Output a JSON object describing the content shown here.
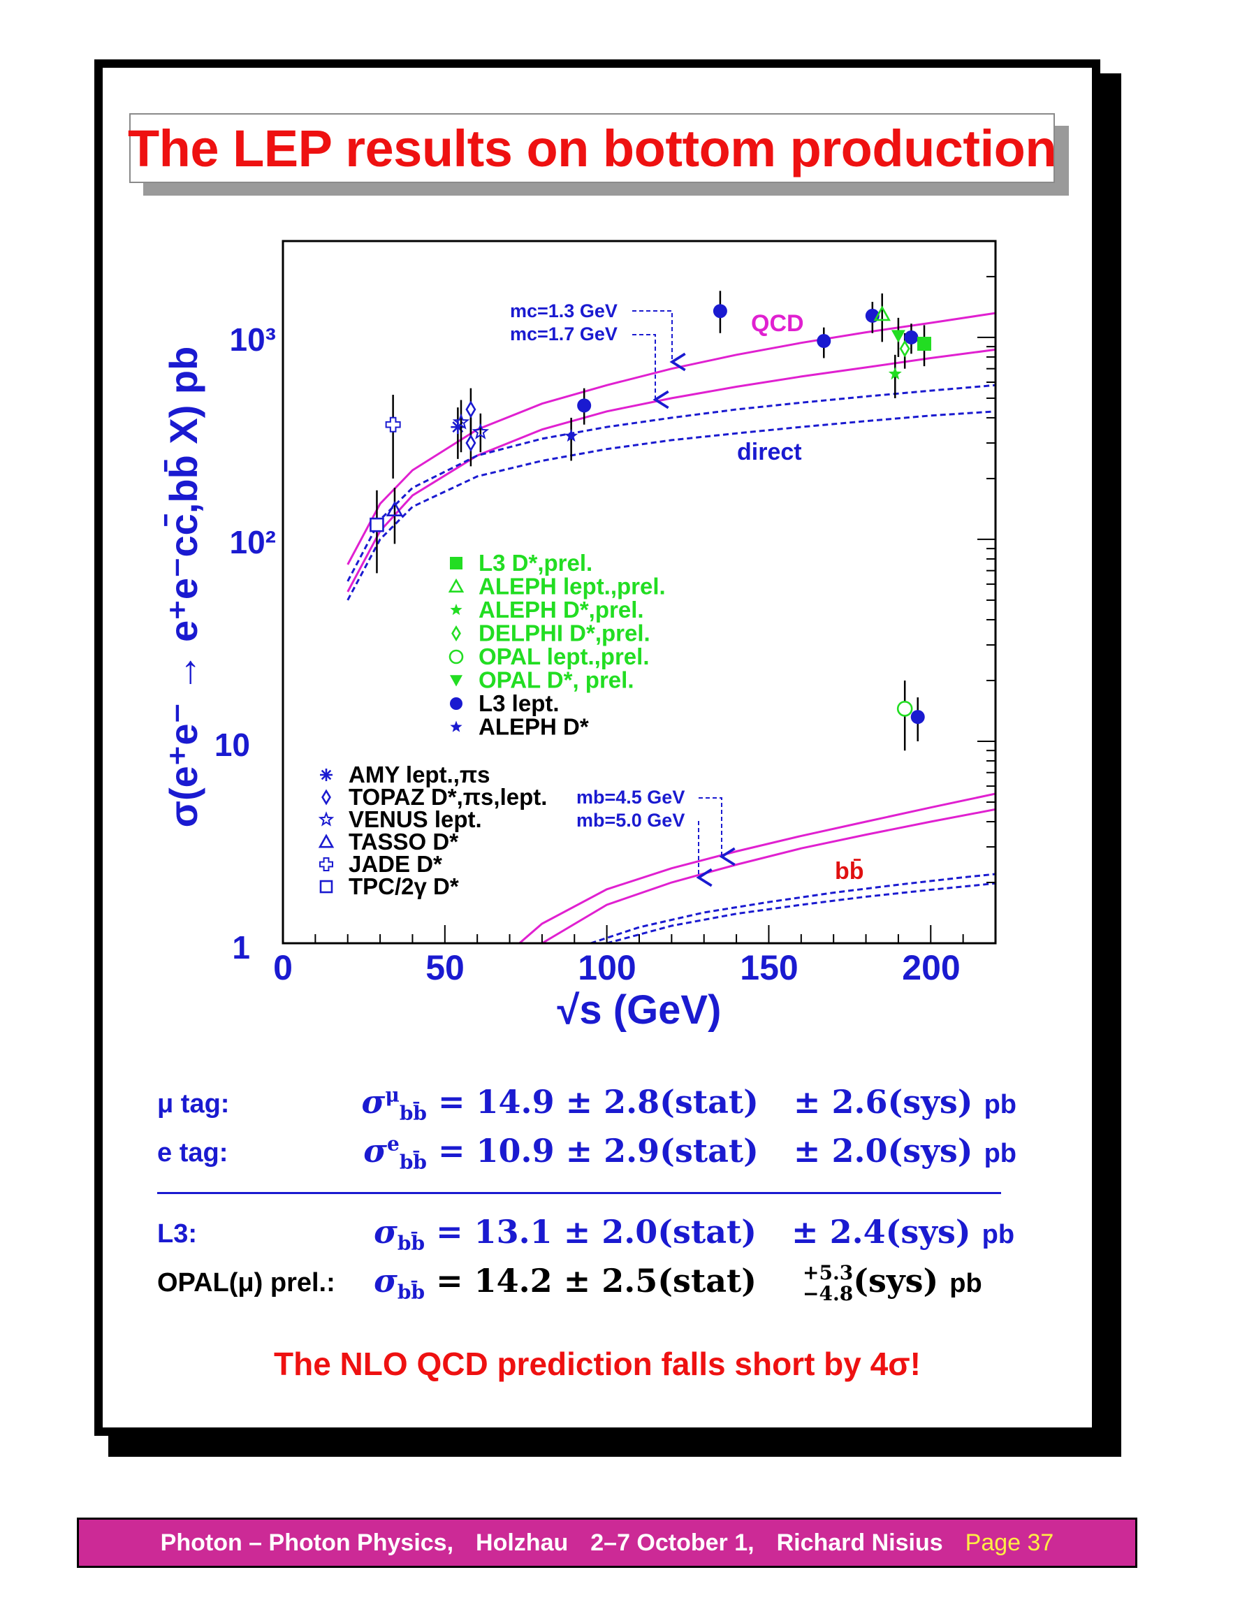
{
  "title": "The LEP results on bottom production",
  "chart_data": {
    "type": "scatter",
    "xlabel": "√s (GeV)",
    "ylabel": "σ(e⁺e⁻ → e⁺e⁻cc̄,bb̄ X) pb",
    "xlim": [
      0,
      220
    ],
    "ylim": [
      1,
      3000
    ],
    "y_scale": "log",
    "x_ticks": [
      "0",
      "50",
      "100",
      "150",
      "200"
    ],
    "y_ticks": [
      "1",
      "10",
      "10²",
      "10³"
    ],
    "curve_labels": {
      "qcd": "QCD",
      "direct": "direct",
      "bb": "bb̄",
      "mc_13": "mc=1.3 GeV",
      "mc_17": "mc=1.7 GeV",
      "mb_45": "mb=4.5 GeV",
      "mb_50": "mb=5.0 GeV"
    },
    "curves": [
      {
        "id": "charm_qcd_mc13",
        "style": "solid",
        "color": "#e020d0",
        "x": [
          20,
          30,
          40,
          60,
          80,
          100,
          120,
          140,
          160,
          180,
          200,
          220
        ],
        "y": [
          75,
          150,
          220,
          350,
          470,
          580,
          700,
          820,
          940,
          1060,
          1180,
          1320
        ]
      },
      {
        "id": "charm_qcd_mc17",
        "style": "solid",
        "color": "#e020d0",
        "x": [
          20,
          30,
          40,
          60,
          80,
          100,
          120,
          140,
          160,
          180,
          200,
          220
        ],
        "y": [
          55,
          110,
          165,
          260,
          350,
          430,
          500,
          570,
          640,
          710,
          790,
          870
        ]
      },
      {
        "id": "charm_direct_mc13",
        "style": "dashed",
        "color": "#1a1ad0",
        "x": [
          20,
          30,
          40,
          60,
          80,
          100,
          120,
          140,
          160,
          180,
          200,
          220
        ],
        "y": [
          62,
          125,
          180,
          260,
          315,
          360,
          400,
          440,
          475,
          510,
          545,
          580
        ]
      },
      {
        "id": "charm_direct_mc17",
        "style": "dashed",
        "color": "#1a1ad0",
        "x": [
          20,
          30,
          40,
          60,
          80,
          100,
          120,
          140,
          160,
          180,
          200,
          220
        ],
        "y": [
          50,
          100,
          145,
          205,
          245,
          280,
          310,
          335,
          360,
          385,
          410,
          430
        ]
      },
      {
        "id": "bottom_qcd_mb45",
        "style": "solid",
        "color": "#e020d0",
        "x": [
          73,
          80,
          100,
          120,
          140,
          160,
          180,
          200,
          220
        ],
        "y": [
          1.0,
          1.25,
          1.85,
          2.35,
          2.85,
          3.4,
          4.0,
          4.7,
          5.5
        ]
      },
      {
        "id": "bottom_qcd_mb50",
        "style": "solid",
        "color": "#e020d0",
        "x": [
          80,
          100,
          120,
          140,
          160,
          180,
          200,
          220
        ],
        "y": [
          1.0,
          1.55,
          2.0,
          2.45,
          2.95,
          3.45,
          4.0,
          4.6
        ]
      },
      {
        "id": "bottom_direct_mb45",
        "style": "dashed",
        "color": "#1a1ad0",
        "x": [
          95,
          110,
          130,
          150,
          170,
          190,
          210,
          220
        ],
        "y": [
          1.0,
          1.2,
          1.42,
          1.6,
          1.78,
          1.95,
          2.12,
          2.2
        ]
      },
      {
        "id": "bottom_direct_mb50",
        "style": "dashed",
        "color": "#1a1ad0",
        "x": [
          100,
          120,
          140,
          160,
          180,
          200,
          220
        ],
        "y": [
          1.0,
          1.22,
          1.4,
          1.55,
          1.7,
          1.84,
          1.98
        ]
      }
    ],
    "legend_lep": [
      {
        "label": "L3 D*,prel.",
        "marker": "square-filled"
      },
      {
        "label": "ALEPH lept.,prel.",
        "marker": "triangle-open"
      },
      {
        "label": "ALEPH D*,prel.",
        "marker": "star-filled"
      },
      {
        "label": "DELPHI D*,prel.",
        "marker": "diamond-open"
      },
      {
        "label": "OPAL lept.,prel.",
        "marker": "circle-open"
      },
      {
        "label": "OPAL D*, prel.",
        "marker": "triangle-down-filled"
      },
      {
        "label": "L3 lept.",
        "marker": "circle-filled"
      },
      {
        "label": "ALEPH D*",
        "marker": "star-filled"
      }
    ],
    "legend_low": [
      {
        "label": "AMY lept.,πs",
        "marker": "asterisk"
      },
      {
        "label": "TOPAZ D*,πs,lept.",
        "marker": "diamond-open"
      },
      {
        "label": "VENUS lept.",
        "marker": "star-open"
      },
      {
        "label": "TASSO D*",
        "marker": "triangle-open"
      },
      {
        "label": "JADE D*",
        "marker": "cross-open"
      },
      {
        "label": "TPC/2γ D*",
        "marker": "square-open"
      }
    ],
    "points": [
      {
        "x": 29,
        "y": 118,
        "ylo": 68,
        "yhi": 175,
        "marker": "square-open",
        "color": "#1a1ad0"
      },
      {
        "x": 34,
        "y": 370,
        "ylo": 200,
        "yhi": 520,
        "marker": "cross-open",
        "color": "#1a1ad0"
      },
      {
        "x": 34.5,
        "y": 140,
        "ylo": 95,
        "yhi": 180,
        "marker": "triangle-open",
        "color": "#1a1ad0"
      },
      {
        "x": 54,
        "y": 360,
        "ylo": 250,
        "yhi": 450,
        "marker": "asterisk",
        "color": "#1a1ad0"
      },
      {
        "x": 55,
        "y": 380,
        "ylo": 270,
        "yhi": 490,
        "marker": "star-open",
        "color": "#1a1ad0"
      },
      {
        "x": 58,
        "y": 440,
        "ylo": 310,
        "yhi": 560,
        "marker": "diamond-open",
        "color": "#1a1ad0"
      },
      {
        "x": 58,
        "y": 300,
        "ylo": 230,
        "yhi": 400,
        "marker": "diamond-open",
        "color": "#1a1ad0"
      },
      {
        "x": 61,
        "y": 340,
        "ylo": 270,
        "yhi": 420,
        "marker": "star-open",
        "color": "#1a1ad0"
      },
      {
        "x": 89,
        "y": 325,
        "ylo": 245,
        "yhi": 400,
        "marker": "star-filled",
        "color": "#1a1ad0"
      },
      {
        "x": 93,
        "y": 460,
        "ylo": 370,
        "yhi": 560,
        "marker": "circle-filled",
        "color": "#1a1ad0"
      },
      {
        "x": 135,
        "y": 1350,
        "ylo": 1050,
        "yhi": 1700,
        "marker": "circle-filled",
        "color": "#1a1ad0"
      },
      {
        "x": 167,
        "y": 960,
        "ylo": 790,
        "yhi": 1120,
        "marker": "circle-filled",
        "color": "#1a1ad0"
      },
      {
        "x": 182,
        "y": 1280,
        "ylo": 1050,
        "yhi": 1500,
        "marker": "circle-filled",
        "color": "#1a1ad0"
      },
      {
        "x": 185,
        "y": 1300,
        "ylo": 950,
        "yhi": 1650,
        "marker": "triangle-open",
        "color": "#22dd22"
      },
      {
        "x": 189,
        "y": 660,
        "ylo": 500,
        "yhi": 820,
        "marker": "star-filled",
        "color": "#22dd22"
      },
      {
        "x": 190,
        "y": 1020,
        "ylo": 800,
        "yhi": 1250,
        "marker": "triangle-down-filled",
        "color": "#22dd22"
      },
      {
        "x": 192,
        "y": 880,
        "ylo": 700,
        "yhi": 1050,
        "marker": "diamond-open",
        "color": "#22dd22"
      },
      {
        "x": 194,
        "y": 1000,
        "ylo": 830,
        "yhi": 1170,
        "marker": "circle-filled",
        "color": "#1a1ad0"
      },
      {
        "x": 198,
        "y": 930,
        "ylo": 720,
        "yhi": 1150,
        "marker": "square-filled",
        "color": "#22dd22"
      },
      {
        "x": 192,
        "y": 14.5,
        "ylo": 9,
        "yhi": 20,
        "marker": "circle-open",
        "color": "#22dd22"
      },
      {
        "x": 196,
        "y": 13.2,
        "ylo": 10,
        "yhi": 16.5,
        "marker": "circle-filled",
        "color": "#1a1ad0"
      }
    ]
  },
  "results": [
    {
      "label": "μ tag:",
      "symbol": "σ",
      "sup": "μ",
      "sub": "bb̄",
      "value": "= 14.9 ± 2.8(stat)",
      "sys": "± 2.6(sys)",
      "unit": "pb"
    },
    {
      "label": "e tag:",
      "symbol": "σ",
      "sup": "e",
      "sub": "bb̄",
      "value": "= 10.9 ± 2.9(stat)",
      "sys": "± 2.0(sys)",
      "unit": "pb"
    },
    {
      "label": "L3:",
      "symbol": "σ",
      "sub": "bb̄",
      "value": "= 13.1 ± 2.0(stat)",
      "sys": "± 2.4(sys)",
      "unit": "pb"
    },
    {
      "label": "OPAL(μ) prel.:",
      "symbol": "σ",
      "sub": "bb̄",
      "value": "= 14.2 ± 2.5(stat)",
      "sys_plus": "+5.3",
      "sys_minus": "−4.8",
      "sys": "(sys)",
      "unit": "pb"
    }
  ],
  "conclusion": "The NLO QCD prediction falls short by 4σ!",
  "footer": {
    "topic": "Photon – Photon Physics,",
    "place": "Holzhau",
    "date": "2–7 October 1,",
    "author": "Richard Nisius",
    "page": "Page 37"
  }
}
